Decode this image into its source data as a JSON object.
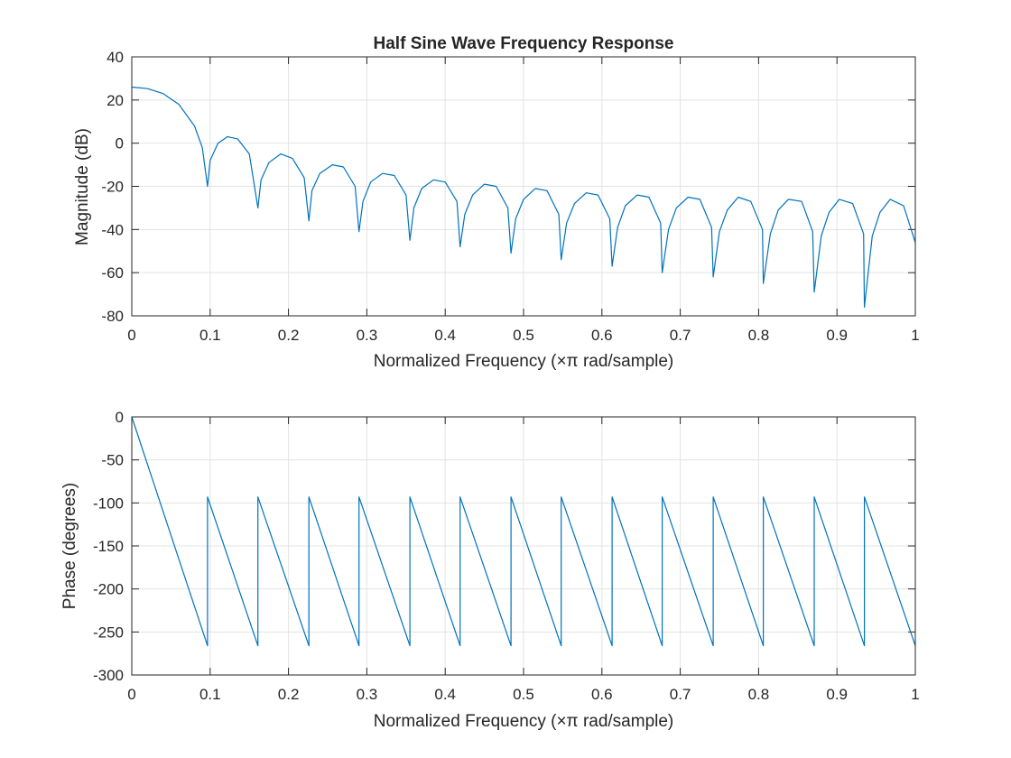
{
  "chart_data": [
    {
      "type": "line",
      "title": "Half Sine Wave Frequency Response",
      "xlabel": "Normalized Frequency  (×π rad/sample)",
      "ylabel": "Magnitude (dB)",
      "xlim": [
        0,
        1
      ],
      "ylim": [
        -80,
        40
      ],
      "xticks": [
        0,
        0.1,
        0.2,
        0.3,
        0.4,
        0.5,
        0.6,
        0.7,
        0.8,
        0.9,
        1
      ],
      "xtick_labels": [
        "0",
        "0.1",
        "0.2",
        "0.3",
        "0.4",
        "0.5",
        "0.6",
        "0.7",
        "0.8",
        "0.9",
        "1"
      ],
      "yticks": [
        -80,
        -60,
        -40,
        -20,
        0,
        20,
        40
      ],
      "ytick_labels": [
        "-80",
        "-60",
        "-40",
        "-20",
        "0",
        "20",
        "40"
      ],
      "grid": true,
      "color": "#0072bd",
      "series": [
        {
          "x": [
            0,
            0.02,
            0.04,
            0.06,
            0.08,
            0.09,
            0.0967,
            0.1,
            0.11,
            0.122,
            0.135,
            0.15,
            0.161,
            0.165,
            0.175,
            0.19,
            0.205,
            0.22,
            0.226,
            0.23,
            0.24,
            0.256,
            0.27,
            0.285,
            0.29,
            0.295,
            0.305,
            0.32,
            0.335,
            0.35,
            0.355,
            0.36,
            0.37,
            0.385,
            0.4,
            0.415,
            0.419,
            0.425,
            0.435,
            0.45,
            0.465,
            0.48,
            0.484,
            0.49,
            0.5,
            0.515,
            0.53,
            0.545,
            0.548,
            0.555,
            0.565,
            0.58,
            0.595,
            0.61,
            0.613,
            0.62,
            0.63,
            0.645,
            0.66,
            0.675,
            0.677,
            0.685,
            0.695,
            0.71,
            0.725,
            0.74,
            0.742,
            0.75,
            0.76,
            0.774,
            0.79,
            0.805,
            0.806,
            0.815,
            0.825,
            0.838,
            0.855,
            0.869,
            0.871,
            0.88,
            0.89,
            0.903,
            0.92,
            0.934,
            0.935,
            0.945,
            0.955,
            0.968,
            0.985,
            1
          ],
          "y": [
            26,
            25.3,
            23,
            18,
            8,
            -2,
            -20,
            -8,
            0,
            3,
            2,
            -5,
            -30,
            -17,
            -9,
            -5,
            -7,
            -16,
            -36,
            -22,
            -14,
            -10,
            -11,
            -20,
            -41,
            -27,
            -18,
            -14,
            -15,
            -24,
            -45,
            -30,
            -21,
            -17,
            -18,
            -27,
            -48,
            -33,
            -24,
            -19,
            -20,
            -30,
            -51,
            -35,
            -26,
            -21,
            -22,
            -33,
            -54,
            -37,
            -28,
            -23,
            -24,
            -35,
            -57,
            -39,
            -29,
            -24,
            -25,
            -37,
            -60,
            -40,
            -30,
            -25,
            -26,
            -39,
            -62,
            -41,
            -31,
            -25,
            -27,
            -40,
            -65,
            -42,
            -31,
            -26,
            -27,
            -41,
            -69,
            -43,
            -32,
            -26,
            -28,
            -42,
            -76,
            -43,
            -32,
            -26,
            -29,
            -46
          ]
        }
      ]
    },
    {
      "type": "line",
      "title": "",
      "xlabel": "Normalized Frequency  (×π rad/sample)",
      "ylabel": "Phase (degrees)",
      "xlim": [
        0,
        1
      ],
      "ylim": [
        -300,
        0
      ],
      "xticks": [
        0,
        0.1,
        0.2,
        0.3,
        0.4,
        0.5,
        0.6,
        0.7,
        0.8,
        0.9,
        1
      ],
      "xtick_labels": [
        "0",
        "0.1",
        "0.2",
        "0.3",
        "0.4",
        "0.5",
        "0.6",
        "0.7",
        "0.8",
        "0.9",
        "1"
      ],
      "yticks": [
        -300,
        -250,
        -200,
        -150,
        -100,
        -50,
        0
      ],
      "ytick_labels": [
        "-300",
        "-250",
        "-200",
        "-150",
        "-100",
        "-50",
        "0"
      ],
      "grid": true,
      "color": "#0072bd",
      "series": [
        {
          "x": [
            0,
            0.0967,
            0.0967,
            0.161,
            0.161,
            0.226,
            0.226,
            0.29,
            0.29,
            0.355,
            0.355,
            0.419,
            0.419,
            0.484,
            0.484,
            0.548,
            0.548,
            0.613,
            0.613,
            0.677,
            0.677,
            0.742,
            0.742,
            0.806,
            0.806,
            0.871,
            0.871,
            0.935,
            0.935,
            1
          ],
          "y": [
            0,
            -266,
            -93,
            -266,
            -93,
            -266,
            -93,
            -266,
            -93,
            -266,
            -93,
            -266,
            -93,
            -266,
            -93,
            -266,
            -93,
            -266,
            -93,
            -266,
            -93,
            -266,
            -93,
            -266,
            -93,
            -266,
            -93,
            -266,
            -93,
            -266
          ]
        }
      ]
    }
  ]
}
